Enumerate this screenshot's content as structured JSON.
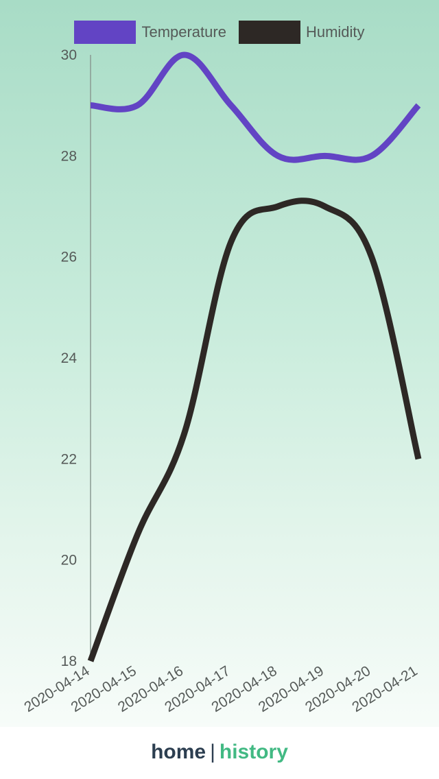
{
  "chart_data": {
    "type": "line",
    "categories": [
      "2020-04-14",
      "2020-04-15",
      "2020-04-16",
      "2020-04-17",
      "2020-04-18",
      "2020-04-19",
      "2020-04-20",
      "2020-04-21"
    ],
    "series": [
      {
        "name": "Temperature",
        "color": "#6244c4",
        "values": [
          29,
          29,
          30,
          29,
          28,
          28,
          28,
          29
        ]
      },
      {
        "name": "Humidity",
        "color": "#2d2825",
        "values": [
          18,
          20.5,
          22.5,
          26.3,
          27,
          27,
          26,
          22
        ]
      }
    ],
    "yticks": [
      18,
      20,
      22,
      24,
      26,
      28,
      30
    ],
    "ylim": [
      18,
      30
    ],
    "legend_position": "top-center",
    "grid": false
  },
  "nav": {
    "home_label": "home",
    "separator": "|",
    "history_label": "history"
  }
}
